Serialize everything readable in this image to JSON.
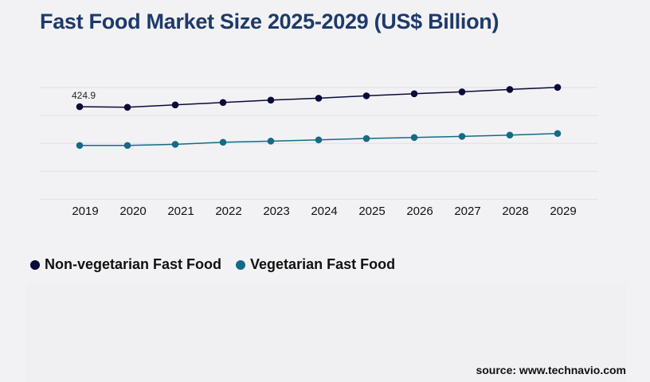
{
  "chart_data": {
    "type": "line",
    "title": "Fast Food Market Size 2025-2029 (US$ Billion)",
    "xlabel": "",
    "ylabel": "",
    "categories": [
      "2019",
      "2020",
      "2021",
      "2022",
      "2023",
      "2024",
      "2025",
      "2026",
      "2027",
      "2028",
      "2029"
    ],
    "series": [
      {
        "name": "Non-vegetarian Fast Food",
        "color": "#0b0a3b",
        "values": [
          424.9,
          422.4,
          433.3,
          444.3,
          455.2,
          464.0,
          475.0,
          484.5,
          493.2,
          504.2,
          513.7
        ]
      },
      {
        "name": "Vegetarian Fast Food",
        "color": "#146b85",
        "values": [
          247.0,
          247.0,
          252.0,
          261.6,
          266.7,
          272.6,
          278.8,
          283.5,
          288.6,
          294.5,
          301.8
        ]
      }
    ],
    "data_labels": [
      {
        "series": 0,
        "index": 0,
        "text": "424.9"
      }
    ],
    "ylim": [
      0,
      513
    ],
    "grid": true,
    "legend": "bottom-left",
    "y_tick_labels_shown": false
  },
  "source": "source: www.technavio.com"
}
